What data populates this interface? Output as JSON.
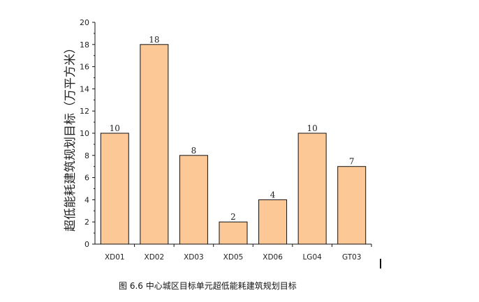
{
  "caption": "图 6.6  中心城区目标单元超低能耗建筑规划目标",
  "chart_data": {
    "type": "bar",
    "categories": [
      "XD01",
      "XD02",
      "XD03",
      "XD05",
      "XD06",
      "LG04",
      "GT03"
    ],
    "values": [
      10,
      18,
      8,
      2,
      4,
      10,
      7
    ],
    "data_labels": [
      "10",
      "18",
      "8",
      "2",
      "4",
      "10",
      "7"
    ],
    "title": "",
    "xlabel": "",
    "ylabel": "超低能耗建筑规划目标（万平方米）",
    "ylim": [
      0,
      20
    ],
    "yticks": [
      0,
      2,
      4,
      6,
      8,
      10,
      12,
      14,
      16,
      18,
      20
    ],
    "grid": false,
    "legend": "none",
    "bar_color": "#fbc896",
    "bar_edge_color": "#111111"
  }
}
